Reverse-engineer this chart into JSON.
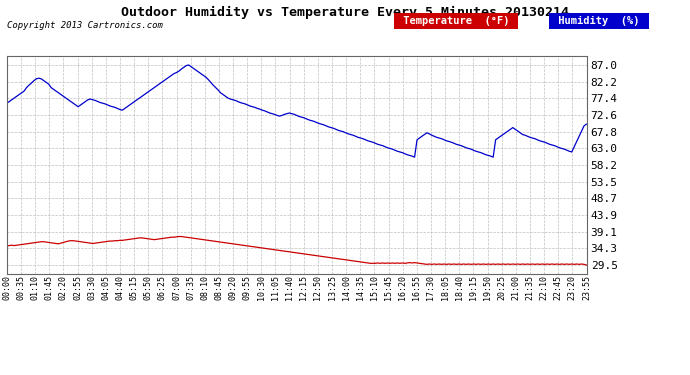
{
  "title": "Outdoor Humidity vs Temperature Every 5 Minutes 20130214",
  "copyright": "Copyright 2013 Cartronics.com",
  "background_color": "#ffffff",
  "plot_bg_color": "#ffffff",
  "grid_color": "#b0b0b0",
  "temp_color": "#0000cc",
  "humidity_color": "#cc0000",
  "legend_temp_bg": "#cc0000",
  "legend_humidity_bg": "#0000cc",
  "yticks": [
    29.5,
    34.3,
    39.1,
    43.9,
    48.7,
    53.5,
    58.2,
    63.0,
    67.8,
    72.6,
    77.4,
    82.2,
    87.0
  ],
  "ymin": 27.0,
  "ymax": 89.5,
  "temp_data": [
    76.0,
    76.5,
    77.0,
    77.5,
    78.0,
    78.5,
    79.0,
    79.5,
    80.5,
    81.2,
    81.8,
    82.5,
    83.0,
    83.2,
    83.0,
    82.5,
    82.0,
    81.5,
    80.5,
    80.0,
    79.5,
    79.0,
    78.5,
    78.0,
    77.5,
    77.0,
    76.5,
    76.0,
    75.5,
    75.0,
    75.5,
    76.0,
    76.5,
    77.0,
    77.2,
    77.0,
    76.8,
    76.5,
    76.2,
    76.0,
    75.8,
    75.5,
    75.2,
    75.0,
    74.8,
    74.5,
    74.2,
    74.0,
    74.5,
    75.0,
    75.5,
    76.0,
    76.5,
    77.0,
    77.5,
    78.0,
    78.5,
    79.0,
    79.5,
    80.0,
    80.5,
    81.0,
    81.5,
    82.0,
    82.5,
    83.0,
    83.5,
    84.0,
    84.5,
    84.8,
    85.2,
    85.8,
    86.3,
    86.8,
    87.0,
    86.5,
    86.0,
    85.5,
    85.0,
    84.5,
    84.0,
    83.5,
    82.8,
    82.0,
    81.2,
    80.5,
    79.8,
    79.0,
    78.5,
    78.0,
    77.5,
    77.2,
    77.0,
    76.8,
    76.5,
    76.2,
    76.0,
    75.8,
    75.5,
    75.2,
    75.0,
    74.8,
    74.5,
    74.3,
    74.0,
    73.8,
    73.5,
    73.2,
    73.0,
    72.8,
    72.5,
    72.3,
    72.5,
    72.8,
    73.0,
    73.2,
    73.0,
    72.8,
    72.5,
    72.2,
    72.0,
    71.8,
    71.5,
    71.2,
    71.0,
    70.8,
    70.5,
    70.2,
    70.0,
    69.8,
    69.5,
    69.2,
    69.0,
    68.8,
    68.5,
    68.2,
    68.0,
    67.8,
    67.5,
    67.2,
    67.0,
    66.8,
    66.5,
    66.2,
    66.0,
    65.8,
    65.5,
    65.2,
    65.0,
    64.8,
    64.5,
    64.2,
    64.0,
    63.8,
    63.5,
    63.2,
    63.0,
    62.8,
    62.5,
    62.2,
    62.0,
    61.8,
    61.5,
    61.2,
    61.0,
    60.8,
    60.5,
    65.5,
    66.0,
    66.5,
    67.0,
    67.5,
    67.2,
    66.8,
    66.5,
    66.2,
    66.0,
    65.8,
    65.5,
    65.2,
    65.0,
    64.8,
    64.5,
    64.2,
    64.0,
    63.8,
    63.5,
    63.2,
    63.0,
    62.8,
    62.5,
    62.2,
    62.0,
    61.8,
    61.5,
    61.2,
    61.0,
    60.8,
    60.5,
    65.5,
    66.0,
    66.5,
    67.0,
    67.5,
    68.0,
    68.5,
    69.0,
    68.5,
    68.0,
    67.5,
    67.0,
    66.8,
    66.5,
    66.2,
    66.0,
    65.8,
    65.5,
    65.2,
    65.0,
    64.8,
    64.5,
    64.2,
    64.0,
    63.8,
    63.5,
    63.2,
    63.0,
    62.8,
    62.5,
    62.2,
    62.0,
    63.5,
    65.0,
    66.5,
    68.0,
    69.5,
    70.0
  ],
  "humidity_data": [
    35.0,
    35.1,
    35.2,
    35.1,
    35.2,
    35.3,
    35.4,
    35.5,
    35.6,
    35.7,
    35.8,
    35.9,
    36.0,
    36.1,
    36.2,
    36.2,
    36.1,
    36.0,
    35.9,
    35.8,
    35.7,
    35.6,
    35.8,
    36.0,
    36.2,
    36.4,
    36.5,
    36.5,
    36.4,
    36.3,
    36.2,
    36.1,
    36.0,
    35.9,
    35.8,
    35.7,
    35.8,
    35.9,
    36.0,
    36.1,
    36.2,
    36.3,
    36.4,
    36.4,
    36.5,
    36.5,
    36.6,
    36.6,
    36.7,
    36.8,
    36.9,
    37.0,
    37.1,
    37.2,
    37.3,
    37.3,
    37.2,
    37.1,
    37.0,
    36.9,
    36.8,
    36.9,
    37.0,
    37.1,
    37.2,
    37.3,
    37.4,
    37.5,
    37.5,
    37.6,
    37.7,
    37.7,
    37.6,
    37.5,
    37.4,
    37.3,
    37.2,
    37.1,
    37.0,
    36.9,
    36.8,
    36.7,
    36.6,
    36.5,
    36.4,
    36.3,
    36.2,
    36.1,
    36.0,
    35.9,
    35.8,
    35.7,
    35.6,
    35.5,
    35.4,
    35.3,
    35.2,
    35.1,
    35.0,
    34.9,
    34.8,
    34.7,
    34.6,
    34.5,
    34.4,
    34.3,
    34.2,
    34.1,
    34.0,
    33.9,
    33.8,
    33.7,
    33.6,
    33.5,
    33.4,
    33.3,
    33.2,
    33.1,
    33.0,
    32.9,
    32.8,
    32.7,
    32.6,
    32.5,
    32.4,
    32.3,
    32.2,
    32.1,
    32.0,
    31.9,
    31.8,
    31.7,
    31.6,
    31.5,
    31.4,
    31.3,
    31.2,
    31.1,
    31.0,
    30.9,
    30.8,
    30.7,
    30.6,
    30.5,
    30.4,
    30.3,
    30.2,
    30.1,
    30.0,
    30.0,
    30.0,
    30.1,
    30.0,
    30.1,
    30.0,
    30.1,
    30.0,
    30.1,
    30.0,
    30.1,
    30.0,
    30.1,
    30.0,
    30.1,
    30.2,
    30.1,
    30.2,
    30.1,
    30.0,
    29.9,
    29.8,
    29.7,
    29.8,
    29.7,
    29.8,
    29.7,
    29.8,
    29.7,
    29.8,
    29.7,
    29.8,
    29.7,
    29.8,
    29.7,
    29.8,
    29.7,
    29.8,
    29.7,
    29.8,
    29.7,
    29.8,
    29.7,
    29.8,
    29.7,
    29.8,
    29.7,
    29.8,
    29.7,
    29.8,
    29.7,
    29.8,
    29.7,
    29.8,
    29.7,
    29.8,
    29.7,
    29.8,
    29.7,
    29.8,
    29.7,
    29.8,
    29.7,
    29.8,
    29.7,
    29.8,
    29.7,
    29.8,
    29.7,
    29.8,
    29.7,
    29.8,
    29.7,
    29.8,
    29.7,
    29.8,
    29.7,
    29.8,
    29.7,
    29.8,
    29.7,
    29.8,
    29.7,
    29.8,
    29.7,
    29.8,
    29.7,
    29.5
  ],
  "xtick_labels": [
    "00:00",
    "00:35",
    "01:10",
    "01:45",
    "02:20",
    "02:55",
    "03:30",
    "04:05",
    "04:40",
    "05:15",
    "05:50",
    "06:25",
    "07:00",
    "07:35",
    "08:10",
    "08:45",
    "09:20",
    "09:55",
    "10:30",
    "11:05",
    "11:40",
    "12:15",
    "12:50",
    "13:25",
    "14:00",
    "14:35",
    "15:10",
    "15:45",
    "16:20",
    "16:55",
    "17:30",
    "18:05",
    "18:40",
    "19:15",
    "19:50",
    "20:25",
    "21:00",
    "21:35",
    "22:10",
    "22:45",
    "23:20",
    "23:55"
  ]
}
